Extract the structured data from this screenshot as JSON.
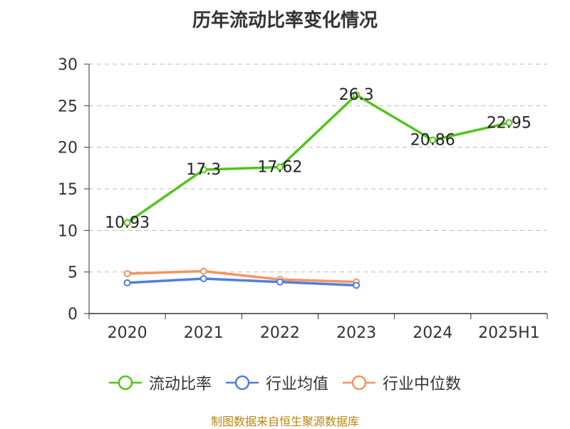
{
  "chart_data": {
    "type": "line",
    "title": "历年流动比率变化情况",
    "categories": [
      "2020",
      "2021",
      "2022",
      "2023",
      "2024",
      "2025H1"
    ],
    "ylim": [
      0,
      30
    ],
    "yticks": [
      "0",
      "5",
      "10",
      "15",
      "20",
      "25",
      "30"
    ],
    "grid": true,
    "legend_position": "bottom",
    "series": [
      {
        "name": "流动比率",
        "color": "#52c41a",
        "values": [
          10.93,
          17.3,
          17.62,
          26.3,
          20.86,
          22.95
        ],
        "labels": [
          "10.93",
          "17.3",
          "17.62",
          "26.3",
          "20.86",
          "22.95"
        ]
      },
      {
        "name": "行业均值",
        "color": "#4e7fdb",
        "values": [
          3.7,
          4.2,
          3.8,
          3.4,
          null,
          null
        ]
      },
      {
        "name": "行业中位数",
        "color": "#f59361",
        "values": [
          4.8,
          5.1,
          4.1,
          3.8,
          null,
          null
        ]
      }
    ]
  },
  "footer": {
    "source": "制图数据来自恒生聚源数据库"
  }
}
